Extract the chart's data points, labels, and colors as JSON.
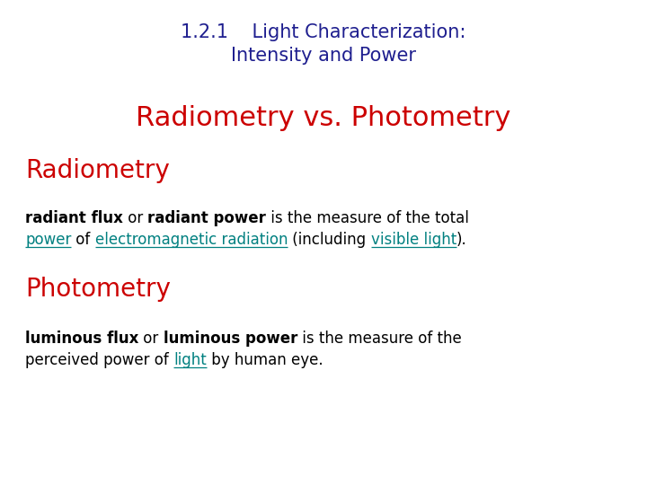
{
  "background_color": "#ffffff",
  "title_line1": "1.2.1    Light Characterization:",
  "title_line2": "Intensity and Power",
  "title_color": "#1f1f8f",
  "subtitle": "Radiometry vs. Photometry",
  "subtitle_color": "#cc0000",
  "section1_heading": "Radiometry",
  "section1_heading_color": "#cc0000",
  "section2_heading": "Photometry",
  "section2_heading_color": "#cc0000",
  "link_color": "#008080",
  "body_color": "#000000"
}
